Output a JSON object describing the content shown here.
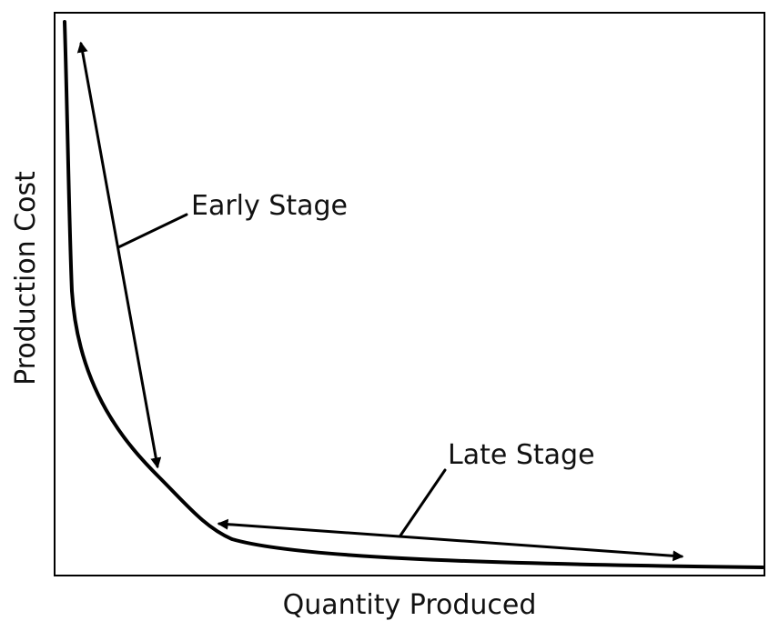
{
  "diagram": {
    "x_label": "Quantity Produced",
    "y_label": "Production Cost",
    "annotations": [
      "Early Stage",
      "Late Stage"
    ]
  }
}
